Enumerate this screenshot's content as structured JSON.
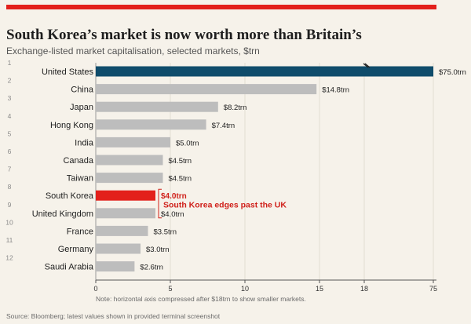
{
  "header": {
    "title": "South Korea’s market is now worth more than Britain’s",
    "subtitle": "Exchange-listed market capitalisation, selected markets, $trn"
  },
  "footer": {
    "source": "Source: Bloomberg; latest values shown in provided terminal screenshot"
  },
  "chart_data": {
    "type": "bar",
    "orientation": "horizontal",
    "categories": [
      "United States",
      "China",
      "Japan",
      "Hong Kong",
      "India",
      "Canada",
      "Taiwan",
      "South Korea",
      "United Kingdom",
      "France",
      "Germany",
      "Saudi Arabia"
    ],
    "ranks": [
      "1",
      "2",
      "3",
      "4",
      "5",
      "6",
      "7",
      "8",
      "9",
      "10",
      "11",
      "12"
    ],
    "values": [
      75.0,
      14.8,
      8.2,
      7.4,
      5.0,
      4.5,
      4.5,
      4.0,
      4.0,
      3.5,
      3.0,
      2.6
    ],
    "value_labels": [
      "$75.0trn",
      "$14.8trn",
      "$8.2trn",
      "$7.4trn",
      "$5.0trn",
      "$4.5trn",
      "$4.5trn",
      "$4.0trn",
      "$4.0trn",
      "$3.5trn",
      "$3.0trn",
      "$2.6trn"
    ],
    "xlim": [
      0,
      75
    ],
    "xticks": [
      0,
      5,
      10,
      15,
      18,
      75
    ],
    "axis_break_at": 18,
    "axis_note": "Note: horizontal axis compressed after $18trn to show smaller markets.",
    "annotation": "South Korea edges past the UK",
    "colors": {
      "default": "#bdbdbd",
      "leader": "#0f4c6b",
      "highlight": "#e3201b",
      "annotation": "#d0211b"
    },
    "leader_index": 0,
    "highlight_index": 7,
    "bracket_indices": [
      7,
      8
    ],
    "grid": true
  }
}
